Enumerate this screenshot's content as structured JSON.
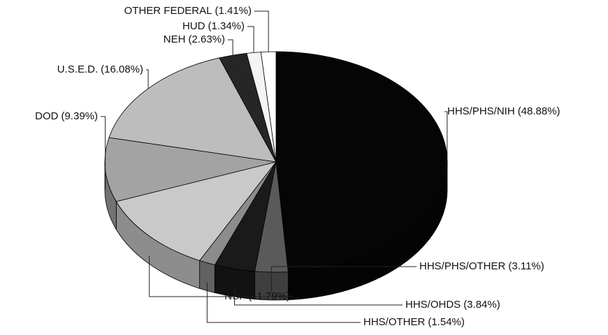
{
  "chart_data": {
    "type": "pie",
    "categories": [
      "HHS/PHS/NIH",
      "HHS/PHS/OTHER",
      "HHS/OHDS",
      "HHS/OTHER",
      "NSF",
      "DOD",
      "U.S.E.D.",
      "NEH",
      "HUD",
      "OTHER FEDERAL"
    ],
    "values": [
      48.88,
      3.11,
      3.84,
      1.54,
      11.79,
      9.39,
      16.08,
      2.63,
      1.34,
      1.41
    ],
    "value_labels": [
      "(48.88%)",
      "(3.11%)",
      "(3.84%)",
      "(1.54%)",
      "(11.79%)",
      "(9.39%)",
      "(16.08%)",
      "(2.63%)",
      "(1.34%)",
      "(1.41%)"
    ],
    "colors": [
      "#050505",
      "#5a5a5a",
      "#1a1a1a",
      "#8c8c8c",
      "#c9c9c9",
      "#a3a3a3",
      "#bdbdbd",
      "#262626",
      "#f4f4f4",
      "#ffffff"
    ]
  }
}
